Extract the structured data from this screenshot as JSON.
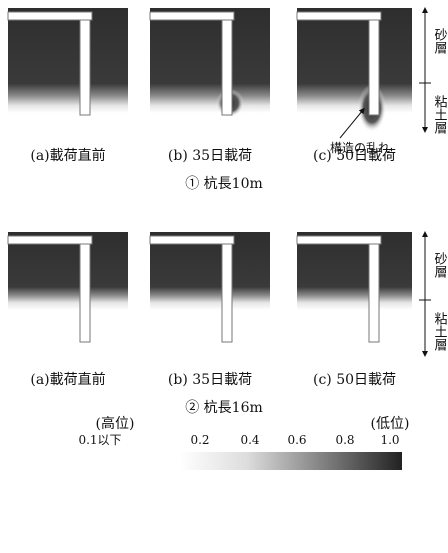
{
  "rows": [
    {
      "title": "① 杭長10m",
      "panels": [
        "(a)載荷直前",
        "(b) 35日載荷",
        "(c) 50日載荷"
      ]
    },
    {
      "title": "② 杭長16m",
      "panels": [
        "(a)載荷直前",
        "(b) 35日載荷",
        "(c) 50日載荷"
      ]
    }
  ],
  "layers": {
    "sand": "砂層",
    "clay": "粘土層"
  },
  "annotation": "構造の乱れ",
  "legend": {
    "high": "(高位)",
    "low": "(低位)",
    "ticks": [
      "0.1以下",
      "0.2",
      "0.4",
      "0.6",
      "0.8",
      "1.0"
    ]
  }
}
